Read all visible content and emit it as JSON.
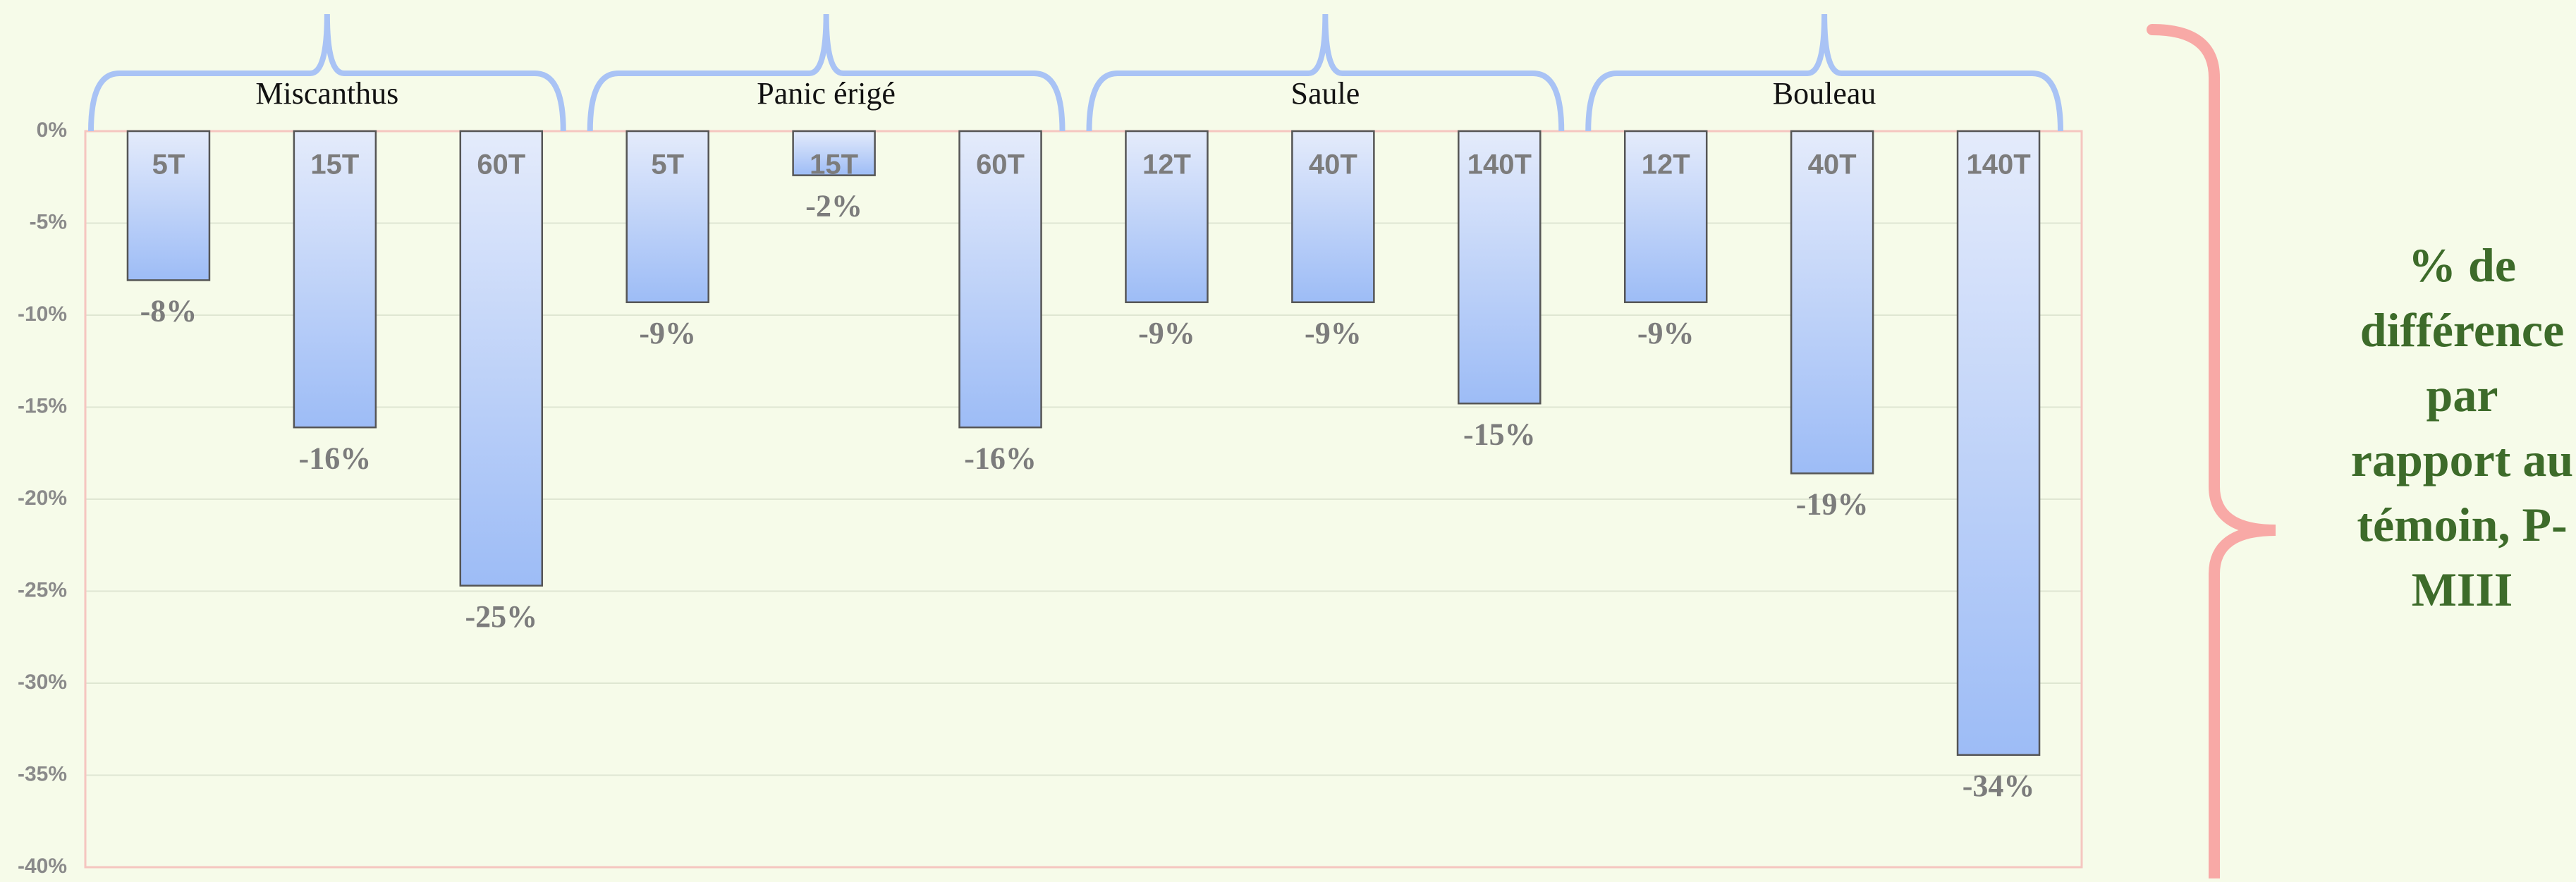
{
  "chart_data": {
    "type": "bar",
    "groups": [
      "Miscanthus",
      "Panic érigé",
      "Saule",
      "Bouleau"
    ],
    "categories": [
      "5T",
      "15T",
      "60T",
      "5T",
      "15T",
      "60T",
      "12T",
      "40T",
      "140T",
      "12T",
      "40T",
      "140T"
    ],
    "values": [
      -8.1,
      -16.1,
      -24.7,
      -9.3,
      -2.4,
      -16.1,
      -9.3,
      -9.3,
      -14.8,
      -9.3,
      -18.6,
      -33.9
    ],
    "value_labels": [
      "-8%",
      "-16%",
      "-25%",
      "-9%",
      "-2%",
      "-16%",
      "-9%",
      "-9%",
      "-15%",
      "-9%",
      "-19%",
      "-34%"
    ],
    "color": "#9dbcf6",
    "ylim": [
      -40,
      0
    ],
    "yticks": [
      {
        "value": 0,
        "label": "0%"
      },
      {
        "value": -5,
        "label": "-5%"
      },
      {
        "value": -10,
        "label": "-10%"
      },
      {
        "value": -15,
        "label": "-15%"
      },
      {
        "value": -20,
        "label": "-20%"
      },
      {
        "value": -25,
        "label": "-25%"
      },
      {
        "value": -30,
        "label": "-30%"
      },
      {
        "value": -35,
        "label": "-35%"
      },
      {
        "value": -40,
        "label": "-40%"
      }
    ],
    "grid": true,
    "annotation": "% de différence par rapport au témoin, P-MIII"
  }
}
